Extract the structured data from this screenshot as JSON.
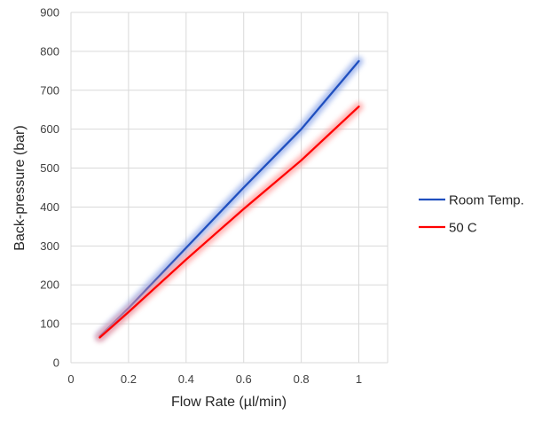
{
  "chart_data": {
    "type": "line",
    "title": "",
    "xlabel": "Flow Rate (µl/min)",
    "ylabel": "Back-pressure (bar)",
    "xlim": [
      0,
      1.1
    ],
    "ylim": [
      0,
      900
    ],
    "x_ticks": [
      "0",
      "0.2",
      "0.4",
      "0.6",
      "0.8",
      "1"
    ],
    "y_ticks": [
      "0",
      "100",
      "200",
      "300",
      "400",
      "500",
      "600",
      "700",
      "800",
      "900"
    ],
    "grid": true,
    "legend_position": "right",
    "series": [
      {
        "name": "Room Temp.",
        "color": "#1f4fbf",
        "glow": "#8fa8e8",
        "x": [
          0.1,
          0.2,
          0.4,
          0.6,
          0.8,
          1.0
        ],
        "y": [
          68,
          140,
          295,
          450,
          600,
          775
        ]
      },
      {
        "name": "50 C",
        "color": "#ff0000",
        "glow": "#ff9a9a",
        "x": [
          0.1,
          0.2,
          0.4,
          0.6,
          0.8,
          1.0
        ],
        "y": [
          65,
          130,
          265,
          395,
          520,
          658
        ]
      }
    ]
  }
}
